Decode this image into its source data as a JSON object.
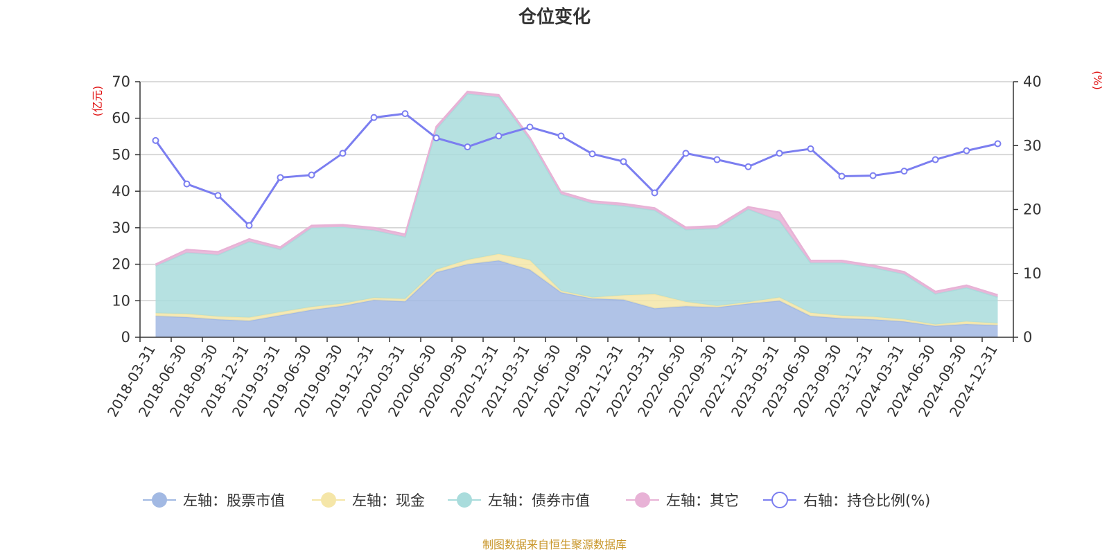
{
  "chart_data": {
    "type": "area",
    "title": "仓位变化",
    "left_axis_unit": "(亿元)",
    "right_axis_unit": "(%)",
    "left_ylim": [
      0,
      70
    ],
    "left_ticks": [
      0,
      10,
      20,
      30,
      40,
      50,
      60,
      70
    ],
    "right_ylim": [
      0,
      40
    ],
    "right_ticks": [
      0,
      10,
      20,
      30,
      40
    ],
    "grid": true,
    "legend_position": "bottom",
    "categories": [
      "2018-03-31",
      "2018-06-30",
      "2018-09-30",
      "2018-12-31",
      "2019-03-31",
      "2019-06-30",
      "2019-09-30",
      "2019-12-31",
      "2020-03-31",
      "2020-06-30",
      "2020-09-30",
      "2020-12-31",
      "2021-03-31",
      "2021-06-30",
      "2021-09-30",
      "2021-12-31",
      "2022-03-31",
      "2022-06-30",
      "2022-09-30",
      "2022-12-31",
      "2023-03-31",
      "2023-06-30",
      "2023-09-30",
      "2023-12-31",
      "2024-03-31",
      "2024-06-30",
      "2024-09-30",
      "2024-12-31"
    ],
    "series": [
      {
        "name": "左轴：股票市值",
        "axis": "left",
        "kind": "stacked-area",
        "color": "#a2b9e3",
        "values": [
          5.8,
          5.5,
          4.9,
          4.5,
          6.0,
          7.5,
          8.6,
          10.2,
          9.8,
          17.8,
          20.0,
          21.0,
          18.5,
          12.3,
          10.6,
          10.3,
          7.9,
          8.5,
          8.2,
          9.2,
          10.0,
          5.8,
          5.2,
          4.9,
          4.3,
          3.1,
          3.6,
          3.3
        ]
      },
      {
        "name": "左轴：现金",
        "axis": "left",
        "kind": "stacked-area",
        "color": "#f5e6a8",
        "values": [
          0.8,
          0.9,
          0.8,
          0.9,
          0.9,
          0.8,
          0.6,
          0.6,
          0.7,
          0.7,
          1.2,
          1.8,
          2.6,
          0.4,
          0.3,
          1.2,
          3.9,
          1.2,
          0.4,
          0.4,
          0.9,
          0.9,
          0.7,
          0.7,
          0.6,
          0.4,
          0.7,
          0.5
        ]
      },
      {
        "name": "左轴：债券市值",
        "axis": "left",
        "kind": "stacked-area",
        "color": "#a9dcdc",
        "values": [
          12.9,
          16.8,
          16.9,
          20.8,
          17.2,
          21.7,
          21.0,
          18.5,
          17.0,
          38.5,
          45.5,
          43.0,
          33.0,
          26.5,
          25.8,
          24.5,
          23.0,
          19.8,
          21.2,
          25.5,
          21.0,
          13.7,
          14.5,
          13.5,
          12.4,
          8.4,
          9.3,
          7.2
        ]
      },
      {
        "name": "左轴：其它",
        "axis": "left",
        "kind": "stacked-area",
        "color": "#e8b2d6",
        "values": [
          0.5,
          0.8,
          0.8,
          0.7,
          0.6,
          0.6,
          0.6,
          0.7,
          0.7,
          0.7,
          0.6,
          0.6,
          0.6,
          0.6,
          0.6,
          0.6,
          0.6,
          0.6,
          0.7,
          0.6,
          2.3,
          0.6,
          0.6,
          0.6,
          0.6,
          0.6,
          0.6,
          0.6
        ]
      },
      {
        "name": "右轴：持仓比例(%)",
        "axis": "right",
        "kind": "line",
        "color": "#7b7ef0",
        "values": [
          30.8,
          24.0,
          22.2,
          17.5,
          25.0,
          25.4,
          28.8,
          34.4,
          35.0,
          31.2,
          29.8,
          31.5,
          32.9,
          31.5,
          28.7,
          27.5,
          22.6,
          28.8,
          27.8,
          26.7,
          28.8,
          29.5,
          25.2,
          25.3,
          26.0,
          27.8,
          29.2,
          30.3
        ]
      }
    ]
  },
  "footer": {
    "source": "制图数据来自恒生聚源数据库"
  }
}
